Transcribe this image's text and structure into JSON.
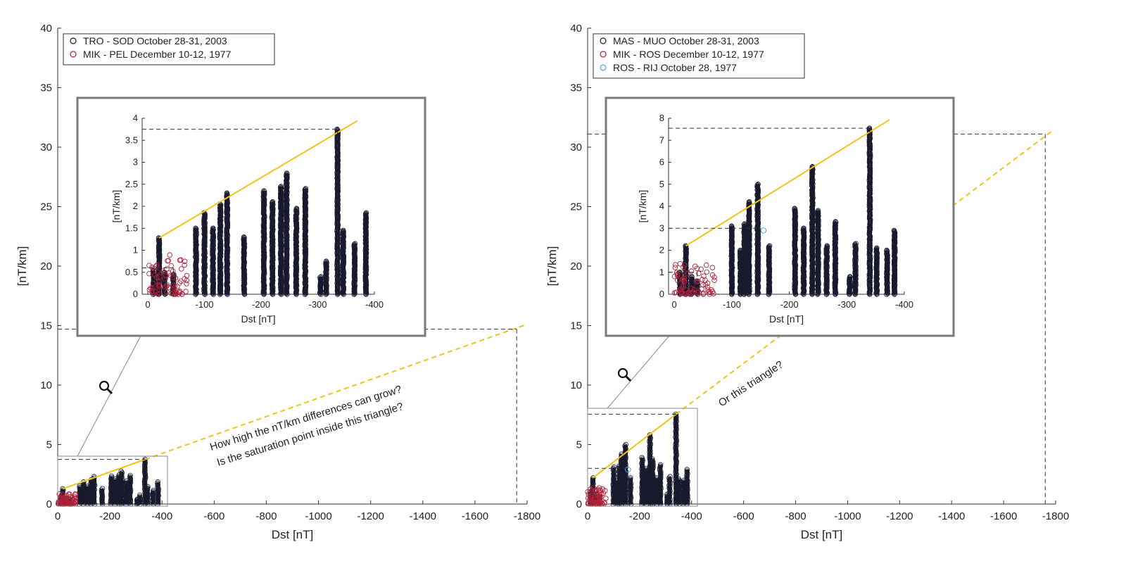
{
  "chart_data": [
    {
      "type": "scatter",
      "panel": "left",
      "xlabel": "Dst [nT]",
      "ylabel": "[nT/km]",
      "xlim": [
        0,
        -1800
      ],
      "ylim": [
        0,
        40
      ],
      "x_ticks": [
        0,
        -200,
        -400,
        -600,
        -800,
        -1000,
        -1200,
        -1400,
        -1600,
        -1800
      ],
      "y_ticks": [
        0,
        5,
        10,
        15,
        20,
        25,
        30,
        35,
        40
      ],
      "legend_position": "top-left",
      "series": [
        {
          "name": "TRO - SOD October 28-31, 2003",
          "color": "#1a1a2e"
        },
        {
          "name": "MIK - PEL December 10-12, 1977",
          "color": "#b0203a"
        }
      ],
      "columns": [
        {
          "x": -10,
          "ymax": 0.55
        },
        {
          "x": -20,
          "ymax": 1.28
        },
        {
          "x": -30,
          "ymax": 0.5
        },
        {
          "x": -45,
          "ymax": 0.45
        },
        {
          "x": -85,
          "ymax": 1.5
        },
        {
          "x": -100,
          "ymax": 1.85
        },
        {
          "x": -115,
          "ymax": 1.5
        },
        {
          "x": -128,
          "ymax": 2.05
        },
        {
          "x": -140,
          "ymax": 2.3
        },
        {
          "x": -170,
          "ymax": 1.3
        },
        {
          "x": -205,
          "ymax": 2.35
        },
        {
          "x": -220,
          "ymax": 2.1
        },
        {
          "x": -235,
          "ymax": 2.45
        },
        {
          "x": -245,
          "ymax": 2.75
        },
        {
          "x": -262,
          "ymax": 1.95
        },
        {
          "x": -278,
          "ymax": 2.4
        },
        {
          "x": -305,
          "ymax": 0.4
        },
        {
          "x": -315,
          "ymax": 0.75
        },
        {
          "x": -335,
          "ymax": 3.75
        },
        {
          "x": -345,
          "ymax": 1.45
        },
        {
          "x": -365,
          "ymax": 1.15
        },
        {
          "x": -385,
          "ymax": 1.85
        }
      ],
      "red_cluster": {
        "x_range": [
          0,
          -70
        ],
        "ymax": 0.9
      },
      "saturation_line": {
        "from": [
          -20,
          1.28
        ],
        "to": [
          -335,
          3.75
        ]
      },
      "extrapolation": {
        "to": [
          -1760,
          14.7
        ]
      },
      "reference_lines": [
        {
          "y": 3.75,
          "x_end": -335
        },
        {
          "y": 14.7,
          "x_end": -1760
        }
      ],
      "inset": {
        "xlim": [
          10,
          -400
        ],
        "ylim": [
          0,
          4
        ],
        "x_ticks": [
          0,
          -100,
          -200,
          -300,
          -400
        ],
        "y_ticks": [
          0,
          0.5,
          1,
          1.5,
          2,
          2.5,
          3,
          3.5,
          4
        ],
        "reference_lines": [
          {
            "y": 3.75,
            "x_end": -335
          },
          {
            "y": 0.6,
            "x_end": -45
          }
        ]
      }
    },
    {
      "type": "scatter",
      "panel": "right",
      "xlabel": "Dst [nT]",
      "ylabel": "[nT/km]",
      "xlim": [
        0,
        -1800
      ],
      "ylim": [
        0,
        40
      ],
      "x_ticks": [
        0,
        -200,
        -400,
        -600,
        -800,
        -1000,
        -1200,
        -1400,
        -1600,
        -1800
      ],
      "y_ticks": [
        0,
        5,
        10,
        15,
        20,
        25,
        30,
        35,
        40
      ],
      "legend_position": "top-left",
      "series": [
        {
          "name": "MAS - MUO October 28-31, 2003",
          "color": "#1a1a2e"
        },
        {
          "name": "MIK - ROS December 10-12, 1977",
          "color": "#b0203a"
        },
        {
          "name": "ROS - RIJ October 28, 1977",
          "color": "#4fa8d8"
        }
      ],
      "columns": [
        {
          "x": -10,
          "ymax": 1.0
        },
        {
          "x": -20,
          "ymax": 2.2
        },
        {
          "x": -30,
          "ymax": 0.8
        },
        {
          "x": -40,
          "ymax": 0.6
        },
        {
          "x": -100,
          "ymax": 3.1
        },
        {
          "x": -115,
          "ymax": 2.0
        },
        {
          "x": -122,
          "ymax": 3.2
        },
        {
          "x": -130,
          "ymax": 4.2
        },
        {
          "x": -145,
          "ymax": 5.0
        },
        {
          "x": -165,
          "ymax": 2.2
        },
        {
          "x": -210,
          "ymax": 3.9
        },
        {
          "x": -225,
          "ymax": 3.0
        },
        {
          "x": -240,
          "ymax": 5.8
        },
        {
          "x": -250,
          "ymax": 3.8
        },
        {
          "x": -265,
          "ymax": 2.2
        },
        {
          "x": -280,
          "ymax": 3.3
        },
        {
          "x": -305,
          "ymax": 0.8
        },
        {
          "x": -315,
          "ymax": 2.3
        },
        {
          "x": -340,
          "ymax": 7.55
        },
        {
          "x": -352,
          "ymax": 2.1
        },
        {
          "x": -370,
          "ymax": 2.0
        },
        {
          "x": -383,
          "ymax": 2.9
        }
      ],
      "red_cluster": {
        "x_range": [
          0,
          -70
        ],
        "ymax": 1.4
      },
      "blue_point": {
        "x": -155,
        "y": 2.9
      },
      "saturation_line": {
        "from": [
          -20,
          2.2
        ],
        "to": [
          -340,
          7.55
        ]
      },
      "extrapolation": {
        "to": [
          -1760,
          31.1
        ]
      },
      "reference_lines": [
        {
          "y": 7.55,
          "x_end": -340
        },
        {
          "y": 3.0,
          "x_end": -150
        },
        {
          "y": 1.0,
          "x_end": -40
        },
        {
          "y": 31.1,
          "x_end": -1760
        }
      ],
      "inset": {
        "xlim": [
          10,
          -400
        ],
        "ylim": [
          0,
          8
        ],
        "x_ticks": [
          0,
          -100,
          -200,
          -300,
          -400
        ],
        "y_ticks": [
          0,
          1,
          2,
          3,
          4,
          5,
          6,
          7,
          8
        ],
        "reference_lines": [
          {
            "y": 7.55,
            "x_end": -340
          },
          {
            "y": 3.0,
            "x_end": -150
          },
          {
            "y": 1.0,
            "x_end": -40
          }
        ]
      }
    }
  ],
  "annotations": {
    "left_line1": "How high the nT/km differences can grow?",
    "left_line2": "Is the saturation point inside this triangle?",
    "right_line1": "Or this triangle?"
  }
}
